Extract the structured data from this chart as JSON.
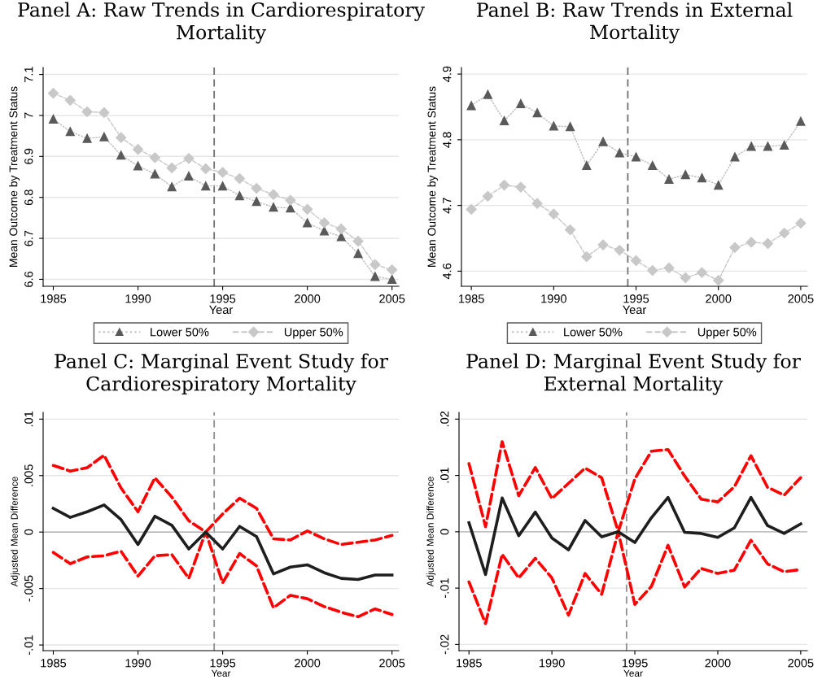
{
  "chart_data": [
    {
      "type": "line",
      "title": "Panel A: Raw Trends in Cardiorespiratory Mortality",
      "xlabel": "Year",
      "ylabel": "Mean Outcome by Treatment Status",
      "x": [
        1985,
        1986,
        1987,
        1988,
        1989,
        1990,
        1991,
        1992,
        1993,
        1994,
        1995,
        1996,
        1997,
        1998,
        1999,
        2000,
        2001,
        2002,
        2003,
        2004,
        2005
      ],
      "series": [
        {
          "name": "Lower 50%",
          "color": "#5a5a5a",
          "marker": "triangle",
          "line_style": "dotted",
          "values": [
            6.991,
            6.961,
            6.944,
            6.948,
            6.903,
            6.877,
            6.857,
            6.826,
            6.852,
            6.828,
            6.828,
            6.804,
            6.79,
            6.776,
            6.774,
            6.738,
            6.718,
            6.704,
            6.663,
            6.607,
            6.6
          ]
        },
        {
          "name": "Upper 50%",
          "color": "#c8c8c8",
          "marker": "diamond",
          "line_style": "dashed",
          "values": [
            7.054,
            7.037,
            7.009,
            7.007,
            6.946,
            6.917,
            6.897,
            6.872,
            6.895,
            6.87,
            6.861,
            6.846,
            6.822,
            6.807,
            6.793,
            6.771,
            6.738,
            6.723,
            6.693,
            6.636,
            6.623
          ]
        }
      ],
      "xlim": [
        1984.4,
        2005.4
      ],
      "xticks": [
        1985,
        1990,
        1995,
        2000,
        2005
      ],
      "ylim": [
        6.583,
        7.117
      ],
      "yticks": [
        6.6,
        6.7,
        6.8,
        6.9,
        7,
        7.1
      ],
      "ref_lines": [
        {
          "axis": "x",
          "value": 1994.5,
          "color": "#707070",
          "line_style": "dashed"
        }
      ],
      "grid": "y",
      "legend": "bottom"
    },
    {
      "type": "line",
      "title": "Panel B: Raw Trends in External Mortality",
      "xlabel": "Year",
      "ylabel": "Mean Outcome by Treatment Status",
      "x": [
        1985,
        1986,
        1987,
        1988,
        1989,
        1990,
        1991,
        1992,
        1993,
        1994,
        1995,
        1996,
        1997,
        1998,
        1999,
        2000,
        2001,
        2002,
        2003,
        2004,
        2005
      ],
      "series": [
        {
          "name": "Lower 50%",
          "color": "#5a5a5a",
          "marker": "triangle",
          "line_style": "dotted",
          "values": [
            4.852,
            4.869,
            4.829,
            4.855,
            4.841,
            4.821,
            4.82,
            4.761,
            4.797,
            4.78,
            4.774,
            4.761,
            4.74,
            4.747,
            4.742,
            4.731,
            4.774,
            4.79,
            4.79,
            4.792,
            4.828
          ]
        },
        {
          "name": "Upper 50%",
          "color": "#c8c8c8",
          "marker": "diamond",
          "line_style": "dashed",
          "values": [
            4.694,
            4.714,
            4.731,
            4.728,
            4.703,
            4.687,
            4.663,
            4.622,
            4.64,
            4.632,
            4.616,
            4.601,
            4.605,
            4.59,
            4.598,
            4.586,
            4.636,
            4.644,
            4.642,
            4.658,
            4.673
          ]
        }
      ],
      "xlim": [
        1984.4,
        2005.4
      ],
      "xticks": [
        1985,
        1990,
        1995,
        2000,
        2005
      ],
      "ylim": [
        4.577,
        4.91
      ],
      "yticks": [
        4.6,
        4.7,
        4.8,
        4.9
      ],
      "ref_lines": [
        {
          "axis": "x",
          "value": 1994.5,
          "color": "#707070",
          "line_style": "dashed"
        }
      ],
      "grid": "y",
      "legend": "bottom"
    },
    {
      "type": "line",
      "title": "Panel C: Marginal Event Study for Cardiorespiratory Mortality",
      "xlabel": "Year",
      "ylabel": "Adjusted Mean Difference",
      "x": [
        1985,
        1986,
        1987,
        1988,
        1989,
        1990,
        1991,
        1992,
        1993,
        1994,
        1995,
        1996,
        1997,
        1998,
        1999,
        2000,
        2001,
        2002,
        2003,
        2004,
        2005
      ],
      "series": [
        {
          "color": "#ff0000",
          "line_style": "dashed",
          "values": [
            0.0059,
            0.0054,
            0.0057,
            0.0068,
            0.0039,
            0.0018,
            0.0048,
            0.0031,
            0.001,
            0,
            0.0016,
            0.003,
            0.0021,
            -0.0006,
            -0.0007,
            0.0001,
            -0.0006,
            -0.0011,
            -0.0009,
            -0.0007,
            -0.0003
          ]
        },
        {
          "color": "#ff0000",
          "line_style": "dashed",
          "values": [
            -0.0018,
            -0.0028,
            -0.0022,
            -0.0021,
            -0.0017,
            -0.0039,
            -0.0021,
            -0.002,
            -0.0041,
            0,
            -0.0045,
            -0.0019,
            -0.003,
            -0.0067,
            -0.0056,
            -0.0059,
            -0.0066,
            -0.0071,
            -0.0075,
            -0.0068,
            -0.0073
          ]
        },
        {
          "color": "#1e1e1e",
          "line_style": "solid",
          "values": [
            0.0021,
            0.0013,
            0.0018,
            0.0024,
            0.0011,
            -0.0011,
            0.0014,
            0.0006,
            -0.0015,
            0,
            -0.0015,
            0.0005,
            -0.0004,
            -0.0037,
            -0.0031,
            -0.0029,
            -0.0036,
            -0.0041,
            -0.0042,
            -0.0038,
            -0.0038
          ]
        }
      ],
      "xlim": [
        1984.4,
        2005.4
      ],
      "xticks": [
        1985,
        1990,
        1995,
        2000,
        2005
      ],
      "ylim": [
        -0.0105,
        0.0106
      ],
      "yticks": [
        {
          "value": -0.01,
          "label": "-.01"
        },
        {
          "value": -0.005,
          "label": "-.005"
        },
        {
          "value": 0,
          "label": "0"
        },
        {
          "value": 0.005,
          "label": ".005"
        },
        {
          "value": 0.01,
          "label": ".01"
        }
      ],
      "ref_lines": [
        {
          "axis": "x",
          "value": 1994.5,
          "color": "#909090",
          "line_style": "dashed"
        },
        {
          "axis": "y",
          "value": 0,
          "color": "#b4b4b4",
          "line_style": "solid"
        }
      ],
      "grid": "y"
    },
    {
      "type": "line",
      "title": "Panel D: Marginal Event Study for External Mortality",
      "xlabel": "Year",
      "ylabel": "Adjusted Mean Difference",
      "x": [
        1985,
        1986,
        1987,
        1988,
        1989,
        1990,
        1991,
        1992,
        1993,
        1994,
        1995,
        1996,
        1997,
        1998,
        1999,
        2000,
        2001,
        2002,
        2003,
        2004,
        2005
      ],
      "series": [
        {
          "color": "#ff0000",
          "line_style": "dashed",
          "values": [
            0.0121,
            0.0009,
            0.016,
            0.0064,
            0.0114,
            0.0059,
            0.0086,
            0.0113,
            0.0096,
            0,
            0.0094,
            0.0143,
            0.0146,
            0.0099,
            0.0058,
            0.0053,
            0.008,
            0.0135,
            0.0079,
            0.0065,
            0.0096
          ]
        },
        {
          "color": "#ff0000",
          "line_style": "dashed",
          "values": [
            -0.0089,
            -0.0163,
            -0.004,
            -0.0082,
            -0.0047,
            -0.0082,
            -0.0148,
            -0.0074,
            -0.0111,
            0,
            -0.0129,
            -0.0097,
            -0.0024,
            -0.0098,
            -0.0065,
            -0.0074,
            -0.0068,
            -0.0015,
            -0.0057,
            -0.0071,
            -0.0067
          ]
        },
        {
          "color": "#1e1e1e",
          "line_style": "solid",
          "values": [
            0.0016,
            -0.0076,
            0.006,
            -0.0007,
            0.0035,
            -0.0011,
            -0.0032,
            0.002,
            -0.0009,
            0,
            -0.0019,
            0.0025,
            0.0061,
            -0.0001,
            -0.0003,
            -0.001,
            0.0007,
            0.0061,
            0.0011,
            -0.0003,
            0.0014
          ]
        }
      ],
      "xlim": [
        1984.4,
        2005.4
      ],
      "xticks": [
        1985,
        1990,
        1995,
        2000,
        2005
      ],
      "ylim": [
        -0.0211,
        0.0212
      ],
      "yticks": [
        {
          "value": -0.02,
          "label": "-.02"
        },
        {
          "value": -0.01,
          "label": "-.01"
        },
        {
          "value": 0,
          "label": "0"
        },
        {
          "value": 0.01,
          "label": ".01"
        },
        {
          "value": 0.02,
          "label": ".02"
        }
      ],
      "ref_lines": [
        {
          "axis": "x",
          "value": 1994.5,
          "color": "#909090",
          "line_style": "dashed"
        },
        {
          "axis": "y",
          "value": 0,
          "color": "#b4b4b4",
          "line_style": "solid"
        }
      ],
      "grid": "y"
    }
  ]
}
